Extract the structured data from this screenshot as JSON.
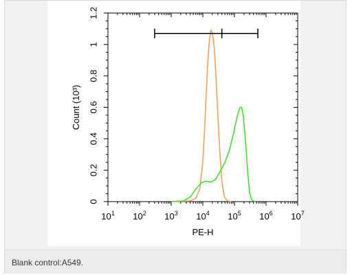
{
  "caption": "Blank control:A549.",
  "colors": {
    "blank_control": "#f0a060",
    "sample": "#44dd33",
    "axis": "#000000",
    "figure_background": "#f1f1f1",
    "caption_background": "#ececec"
  },
  "chart_data": {
    "type": "line",
    "title": "",
    "xlabel": "PE-H",
    "ylabel": "Count (10³)",
    "x_scale": "log",
    "xlim": [
      10,
      10000000
    ],
    "ylim": [
      0,
      1.2
    ],
    "x_ticks": [
      {
        "value": 10,
        "base": "10",
        "exp": "1"
      },
      {
        "value": 100,
        "base": "10",
        "exp": "2"
      },
      {
        "value": 1000,
        "base": "10",
        "exp": "3"
      },
      {
        "value": 10000,
        "base": "10",
        "exp": "4"
      },
      {
        "value": 100000,
        "base": "10",
        "exp": "5"
      },
      {
        "value": 1000000,
        "base": "10",
        "exp": "6"
      },
      {
        "value": 10000000,
        "base": "10",
        "exp": "7"
      }
    ],
    "y_ticks": [
      {
        "value": 0,
        "label": "0"
      },
      {
        "value": 0.2,
        "label": "0.2"
      },
      {
        "value": 0.4,
        "label": "0.4"
      },
      {
        "value": 0.6,
        "label": "0.6"
      },
      {
        "value": 0.8,
        "label": "0.8"
      },
      {
        "value": 1,
        "label": "1"
      },
      {
        "value": 1.2,
        "label": "1.2"
      }
    ],
    "grid": false,
    "legend": "none",
    "series": [
      {
        "color": "#f0a060",
        "points": [
          [
            1000,
            0
          ],
          [
            4000,
            0.005
          ],
          [
            6000,
            0.02
          ],
          [
            8000,
            0.08
          ],
          [
            10000,
            0.25
          ],
          [
            12000,
            0.55
          ],
          [
            14000,
            0.85
          ],
          [
            16000,
            1.02
          ],
          [
            18000,
            1.09
          ],
          [
            20000,
            1.08
          ],
          [
            23000,
            0.98
          ],
          [
            26000,
            0.8
          ],
          [
            30000,
            0.55
          ],
          [
            35000,
            0.3
          ],
          [
            40000,
            0.13
          ],
          [
            48000,
            0.03
          ],
          [
            60000,
            0.005
          ],
          [
            80000,
            0
          ]
        ]
      },
      {
        "color": "#44dd33",
        "points": [
          [
            1000,
            0
          ],
          [
            2500,
            0.005
          ],
          [
            4000,
            0.03
          ],
          [
            6000,
            0.08
          ],
          [
            9000,
            0.12
          ],
          [
            12000,
            0.13
          ],
          [
            18000,
            0.125
          ],
          [
            25000,
            0.14
          ],
          [
            35000,
            0.19
          ],
          [
            50000,
            0.25
          ],
          [
            70000,
            0.33
          ],
          [
            90000,
            0.42
          ],
          [
            110000,
            0.5
          ],
          [
            130000,
            0.56
          ],
          [
            150000,
            0.6
          ],
          [
            170000,
            0.6
          ],
          [
            190000,
            0.55
          ],
          [
            220000,
            0.4
          ],
          [
            260000,
            0.2
          ],
          [
            300000,
            0.06
          ],
          [
            350000,
            0.01
          ],
          [
            450000,
            0
          ]
        ]
      }
    ],
    "annotations": [
      {
        "type": "range-bar",
        "x_start": 300,
        "x_mid": 40000,
        "x_end": 550000,
        "y": 1.07
      }
    ]
  }
}
